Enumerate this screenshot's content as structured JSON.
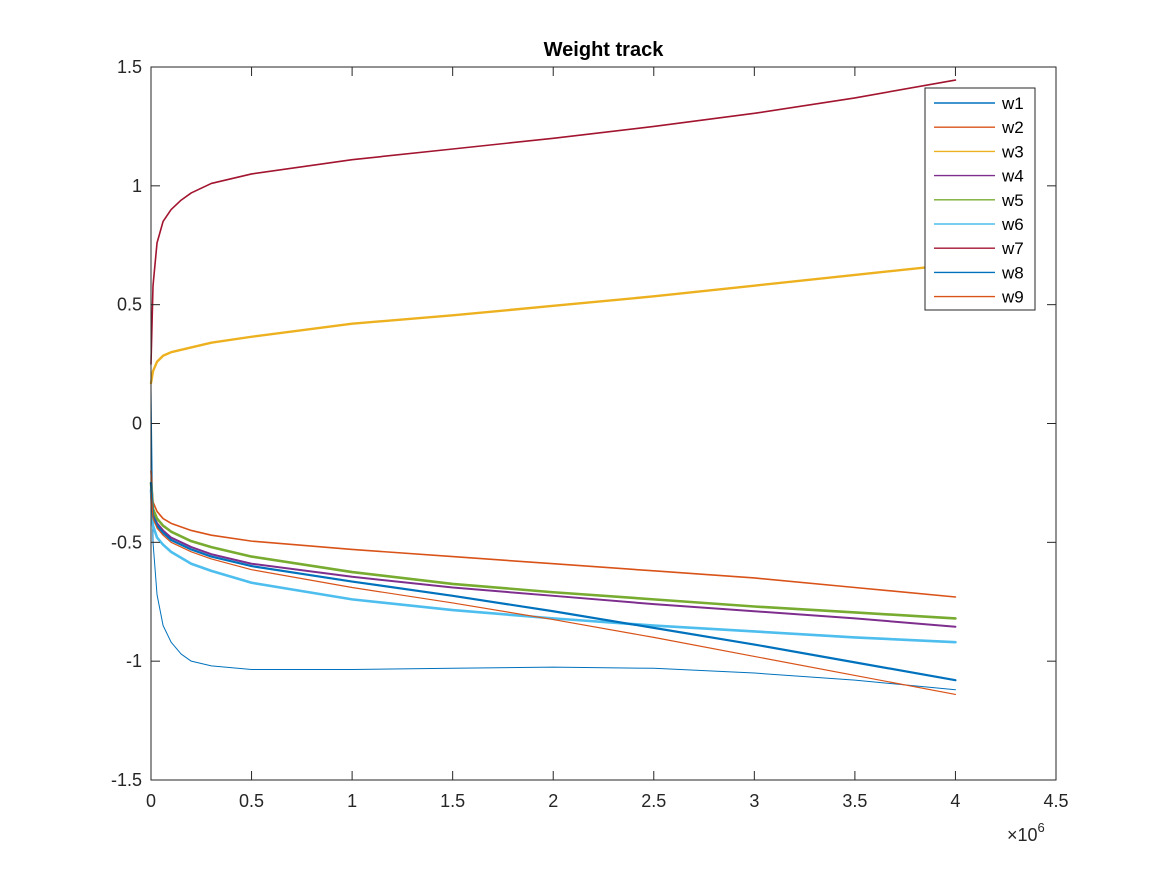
{
  "chart_data": {
    "type": "line",
    "title": "Weight track",
    "xlabel": "",
    "ylabel": "",
    "xlim": [
      0,
      4.5
    ],
    "ylim": [
      -1.5,
      1.5
    ],
    "x_ticks": [
      0,
      0.5,
      1,
      1.5,
      2,
      2.5,
      3,
      3.5,
      4,
      4.5
    ],
    "x_tick_labels": [
      "0",
      "0.5",
      "1",
      "1.5",
      "2",
      "2.5",
      "3",
      "3.5",
      "4",
      "4.5"
    ],
    "y_ticks": [
      -1.5,
      -1,
      -0.5,
      0,
      0.5,
      1,
      1.5
    ],
    "y_tick_labels": [
      "-1.5",
      "-1",
      "-0.5",
      "0",
      "0.5",
      "1",
      "1.5"
    ],
    "x_exponent": {
      "base": "×10",
      "power": "6"
    },
    "grid": false,
    "legend_position": "top-right",
    "series": [
      {
        "name": "w1",
        "color": "#0072BD",
        "width": 1.0,
        "x": [
          0,
          0.01,
          0.03,
          0.06,
          0.1,
          0.15,
          0.2,
          0.3,
          0.5,
          1,
          1.5,
          2,
          2.5,
          3,
          3.5,
          4
        ],
        "y": [
          0.15,
          -0.5,
          -0.72,
          -0.85,
          -0.92,
          -0.97,
          -1.0,
          -1.02,
          -1.035,
          -1.035,
          -1.03,
          -1.025,
          -1.03,
          -1.05,
          -1.08,
          -1.12
        ]
      },
      {
        "name": "w2",
        "color": "#D95319",
        "width": 1.6,
        "x": [
          0,
          0.01,
          0.03,
          0.06,
          0.1,
          0.2,
          0.3,
          0.5,
          1,
          1.5,
          2,
          2.5,
          3,
          3.5,
          4
        ],
        "y": [
          -0.2,
          -0.33,
          -0.37,
          -0.4,
          -0.42,
          -0.45,
          -0.47,
          -0.495,
          -0.53,
          -0.56,
          -0.59,
          -0.62,
          -0.65,
          -0.69,
          -0.73
        ]
      },
      {
        "name": "w3",
        "color": "#EDB120",
        "width": 2.4,
        "x": [
          0,
          0.01,
          0.03,
          0.06,
          0.1,
          0.2,
          0.3,
          0.5,
          1,
          1.5,
          2,
          2.5,
          3,
          3.5,
          4
        ],
        "y": [
          0.17,
          0.22,
          0.26,
          0.285,
          0.3,
          0.32,
          0.34,
          0.365,
          0.42,
          0.455,
          0.495,
          0.535,
          0.58,
          0.625,
          0.67
        ]
      },
      {
        "name": "w4",
        "color": "#7E2F8E",
        "width": 2.0,
        "x": [
          0,
          0.01,
          0.03,
          0.06,
          0.1,
          0.2,
          0.3,
          0.5,
          1,
          1.5,
          2,
          2.5,
          3,
          3.5,
          4
        ],
        "y": [
          -0.3,
          -0.38,
          -0.42,
          -0.45,
          -0.48,
          -0.52,
          -0.55,
          -0.59,
          -0.645,
          -0.69,
          -0.725,
          -0.76,
          -0.79,
          -0.82,
          -0.855
        ]
      },
      {
        "name": "w5",
        "color": "#77AC30",
        "width": 2.6,
        "x": [
          0,
          0.01,
          0.03,
          0.06,
          0.1,
          0.2,
          0.3,
          0.5,
          1,
          1.5,
          2,
          2.5,
          3,
          3.5,
          4
        ],
        "y": [
          -0.25,
          -0.36,
          -0.4,
          -0.43,
          -0.455,
          -0.495,
          -0.52,
          -0.56,
          -0.625,
          -0.675,
          -0.71,
          -0.74,
          -0.77,
          -0.795,
          -0.82
        ]
      },
      {
        "name": "w6",
        "color": "#4DBEEE",
        "width": 2.6,
        "x": [
          0,
          0.01,
          0.03,
          0.06,
          0.1,
          0.2,
          0.3,
          0.5,
          1,
          1.5,
          2,
          2.5,
          3,
          3.5,
          4
        ],
        "y": [
          -0.28,
          -0.43,
          -0.48,
          -0.51,
          -0.54,
          -0.59,
          -0.62,
          -0.67,
          -0.74,
          -0.785,
          -0.82,
          -0.85,
          -0.875,
          -0.9,
          -0.92
        ]
      },
      {
        "name": "w7",
        "color": "#A2142F",
        "width": 1.6,
        "x": [
          0,
          0.01,
          0.03,
          0.06,
          0.1,
          0.15,
          0.2,
          0.3,
          0.5,
          1,
          1.5,
          2,
          2.5,
          3,
          3.5,
          4
        ],
        "y": [
          0.25,
          0.58,
          0.76,
          0.85,
          0.9,
          0.94,
          0.97,
          1.01,
          1.05,
          1.11,
          1.155,
          1.2,
          1.25,
          1.305,
          1.37,
          1.445
        ]
      },
      {
        "name": "w8",
        "color": "#0072BD",
        "width": 2.2,
        "x": [
          0,
          0.01,
          0.03,
          0.06,
          0.1,
          0.2,
          0.3,
          0.5,
          1,
          1.5,
          2,
          2.5,
          3,
          3.5,
          4
        ],
        "y": [
          -0.25,
          -0.39,
          -0.43,
          -0.46,
          -0.49,
          -0.53,
          -0.56,
          -0.6,
          -0.665,
          -0.725,
          -0.79,
          -0.86,
          -0.93,
          -1.005,
          -1.08
        ]
      },
      {
        "name": "w9",
        "color": "#D95319",
        "width": 1.2,
        "x": [
          0,
          0.01,
          0.03,
          0.06,
          0.1,
          0.2,
          0.3,
          0.5,
          1,
          1.5,
          2,
          2.5,
          3,
          3.5,
          4
        ],
        "y": [
          -0.28,
          -0.4,
          -0.44,
          -0.47,
          -0.5,
          -0.54,
          -0.57,
          -0.615,
          -0.69,
          -0.755,
          -0.825,
          -0.9,
          -0.98,
          -1.06,
          -1.14
        ]
      }
    ]
  }
}
